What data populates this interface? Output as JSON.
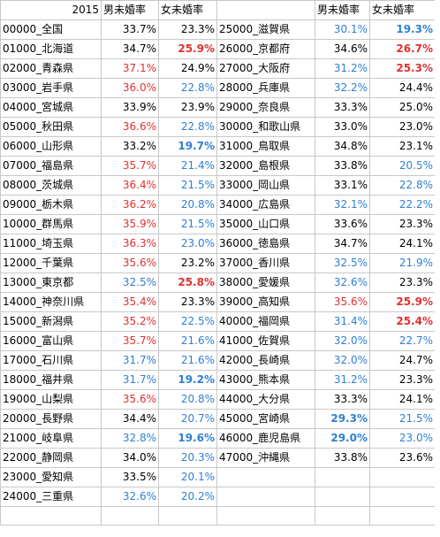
{
  "header": {
    "year": "2015",
    "male_label": "男未婚率",
    "female_label": "女未婚率",
    "male_label_2": "男未婚率",
    "female_label_2": "女未婚率"
  },
  "colors": {
    "red": "#e03030",
    "blue": "#2f7fd3",
    "grid": "#c8c8c8"
  },
  "left": [
    {
      "pref": "00000_全国",
      "male": "33.7%",
      "female": "23.3%",
      "ms": "",
      "fs": ""
    },
    {
      "pref": "01000_北海道",
      "male": "34.7%",
      "female": "25.9%",
      "ms": "",
      "fs": "bold-red"
    },
    {
      "pref": "02000_青森県",
      "male": "37.1%",
      "female": "24.9%",
      "ms": "red",
      "fs": ""
    },
    {
      "pref": "03000_岩手県",
      "male": "36.0%",
      "female": "22.8%",
      "ms": "red",
      "fs": "blue"
    },
    {
      "pref": "04000_宮城県",
      "male": "33.9%",
      "female": "23.9%",
      "ms": "",
      "fs": ""
    },
    {
      "pref": "05000_秋田県",
      "male": "36.6%",
      "female": "22.8%",
      "ms": "red",
      "fs": "blue"
    },
    {
      "pref": "06000_山形県",
      "male": "33.2%",
      "female": "19.7%",
      "ms": "",
      "fs": "bold-blue"
    },
    {
      "pref": "07000_福島県",
      "male": "35.7%",
      "female": "21.4%",
      "ms": "red",
      "fs": "blue"
    },
    {
      "pref": "08000_茨城県",
      "male": "36.4%",
      "female": "21.5%",
      "ms": "red",
      "fs": "blue"
    },
    {
      "pref": "09000_栃木県",
      "male": "36.2%",
      "female": "20.8%",
      "ms": "red",
      "fs": "blue"
    },
    {
      "pref": "10000_群馬県",
      "male": "35.9%",
      "female": "21.5%",
      "ms": "red",
      "fs": "blue"
    },
    {
      "pref": "11000_埼玉県",
      "male": "36.3%",
      "female": "23.0%",
      "ms": "red",
      "fs": "blue"
    },
    {
      "pref": "12000_千葉県",
      "male": "35.6%",
      "female": "23.2%",
      "ms": "red",
      "fs": ""
    },
    {
      "pref": "13000_東京都",
      "male": "32.5%",
      "female": "25.8%",
      "ms": "blue",
      "fs": "bold-red"
    },
    {
      "pref": "14000_神奈川県",
      "male": "35.4%",
      "female": "23.3%",
      "ms": "red",
      "fs": ""
    },
    {
      "pref": "15000_新潟県",
      "male": "35.2%",
      "female": "22.5%",
      "ms": "red",
      "fs": "blue"
    },
    {
      "pref": "16000_富山県",
      "male": "35.7%",
      "female": "21.6%",
      "ms": "red",
      "fs": "blue"
    },
    {
      "pref": "17000_石川県",
      "male": "31.7%",
      "female": "21.6%",
      "ms": "blue",
      "fs": "blue"
    },
    {
      "pref": "18000_福井県",
      "male": "31.7%",
      "female": "19.2%",
      "ms": "blue",
      "fs": "bold-blue"
    },
    {
      "pref": "19000_山梨県",
      "male": "35.6%",
      "female": "20.8%",
      "ms": "red",
      "fs": "blue"
    },
    {
      "pref": "20000_長野県",
      "male": "34.4%",
      "female": "20.7%",
      "ms": "",
      "fs": "blue"
    },
    {
      "pref": "21000_岐阜県",
      "male": "32.8%",
      "female": "19.6%",
      "ms": "blue",
      "fs": "bold-blue"
    },
    {
      "pref": "22000_静岡県",
      "male": "34.0%",
      "female": "20.3%",
      "ms": "",
      "fs": "blue"
    },
    {
      "pref": "23000_愛知県",
      "male": "33.5%",
      "female": "20.1%",
      "ms": "",
      "fs": "blue"
    },
    {
      "pref": "24000_三重県",
      "male": "32.6%",
      "female": "20.2%",
      "ms": "blue",
      "fs": "blue"
    }
  ],
  "right": [
    {
      "pref": "25000_滋賀県",
      "male": "30.1%",
      "female": "19.3%",
      "ms": "blue",
      "fs": "bold-blue"
    },
    {
      "pref": "26000_京都府",
      "male": "34.6%",
      "female": "26.7%",
      "ms": "",
      "fs": "bold-red"
    },
    {
      "pref": "27000_大阪府",
      "male": "31.2%",
      "female": "25.3%",
      "ms": "blue",
      "fs": "bold-red"
    },
    {
      "pref": "28000_兵庫県",
      "male": "32.2%",
      "female": "24.4%",
      "ms": "blue",
      "fs": ""
    },
    {
      "pref": "29000_奈良県",
      "male": "33.3%",
      "female": "25.0%",
      "ms": "",
      "fs": ""
    },
    {
      "pref": "30000_和歌山県",
      "male": "33.0%",
      "female": "23.0%",
      "ms": "",
      "fs": ""
    },
    {
      "pref": "31000_鳥取県",
      "male": "34.8%",
      "female": "23.1%",
      "ms": "",
      "fs": ""
    },
    {
      "pref": "32000_島根県",
      "male": "33.8%",
      "female": "20.5%",
      "ms": "",
      "fs": "blue"
    },
    {
      "pref": "33000_岡山県",
      "male": "33.1%",
      "female": "22.8%",
      "ms": "",
      "fs": "blue"
    },
    {
      "pref": "34000_広島県",
      "male": "32.1%",
      "female": "22.2%",
      "ms": "blue",
      "fs": "blue"
    },
    {
      "pref": "35000_山口県",
      "male": "33.6%",
      "female": "23.3%",
      "ms": "",
      "fs": ""
    },
    {
      "pref": "36000_徳島県",
      "male": "34.7%",
      "female": "24.1%",
      "ms": "",
      "fs": ""
    },
    {
      "pref": "37000_香川県",
      "male": "32.5%",
      "female": "21.9%",
      "ms": "blue",
      "fs": "blue"
    },
    {
      "pref": "38000_愛媛県",
      "male": "32.6%",
      "female": "23.3%",
      "ms": "blue",
      "fs": ""
    },
    {
      "pref": "39000_高知県",
      "male": "35.6%",
      "female": "25.9%",
      "ms": "red",
      "fs": "bold-red"
    },
    {
      "pref": "40000_福岡県",
      "male": "31.4%",
      "female": "25.4%",
      "ms": "blue",
      "fs": "bold-red"
    },
    {
      "pref": "41000_佐賀県",
      "male": "32.0%",
      "female": "22.7%",
      "ms": "blue",
      "fs": "blue"
    },
    {
      "pref": "42000_長崎県",
      "male": "32.0%",
      "female": "24.7%",
      "ms": "blue",
      "fs": ""
    },
    {
      "pref": "43000_熊本県",
      "male": "31.2%",
      "female": "23.3%",
      "ms": "blue",
      "fs": ""
    },
    {
      "pref": "44000_大分県",
      "male": "33.3%",
      "female": "24.1%",
      "ms": "",
      "fs": ""
    },
    {
      "pref": "45000_宮崎県",
      "male": "29.3%",
      "female": "21.5%",
      "ms": "bold-blue",
      "fs": "blue"
    },
    {
      "pref": "46000_鹿児島県",
      "male": "29.0%",
      "female": "23.0%",
      "ms": "bold-blue",
      "fs": "blue"
    },
    {
      "pref": "47000_沖縄県",
      "male": "33.8%",
      "female": "23.6%",
      "ms": "",
      "fs": ""
    }
  ]
}
